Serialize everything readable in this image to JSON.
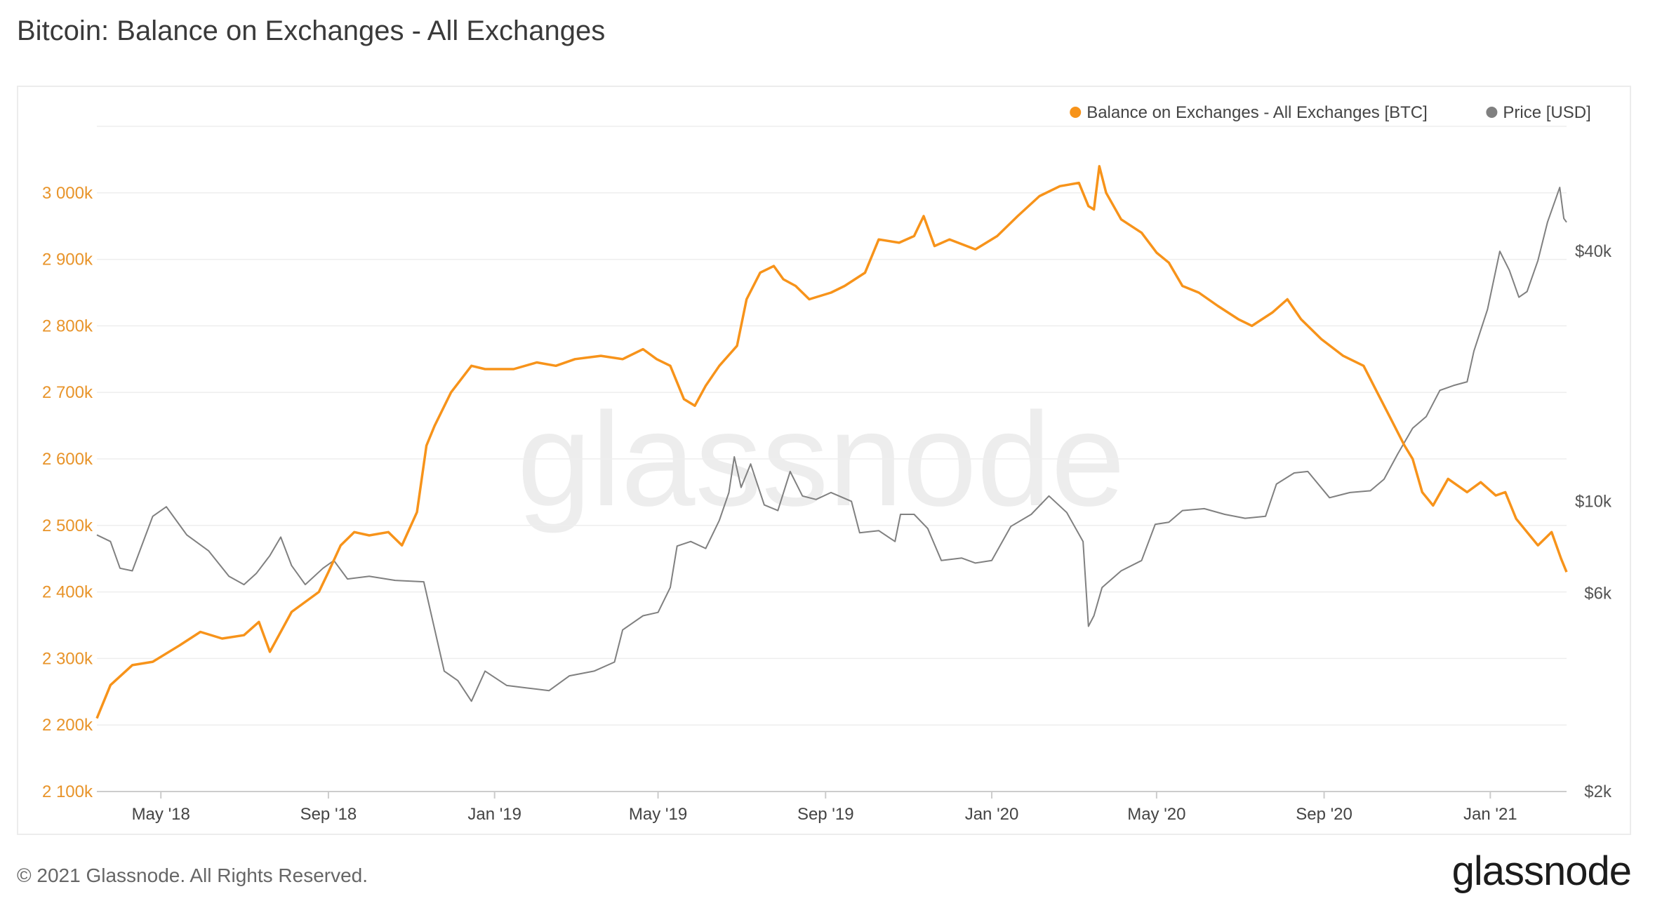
{
  "page": {
    "title": "Bitcoin: Balance on Exchanges - All Exchanges",
    "copyright": "© 2021 Glassnode. All Rights Reserved.",
    "brand": "glassnode",
    "watermark": "glassnode"
  },
  "chart_data": {
    "type": "line",
    "legend": [
      {
        "name": "Balance on Exchanges - All Exchanges [BTC]",
        "color": "#f7931a"
      },
      {
        "name": "Price [USD]",
        "color": "#808080"
      }
    ],
    "legend_position": "top-right",
    "x_range": [
      "2018-03-15",
      "2021-02-26"
    ],
    "x_ticks": [
      {
        "date": "2018-05-01",
        "label": "May '18"
      },
      {
        "date": "2018-09-01",
        "label": "Sep '18"
      },
      {
        "date": "2019-01-01",
        "label": "Jan '19"
      },
      {
        "date": "2019-05-01",
        "label": "May '19"
      },
      {
        "date": "2019-09-01",
        "label": "Sep '19"
      },
      {
        "date": "2020-01-01",
        "label": "Jan '20"
      },
      {
        "date": "2020-05-01",
        "label": "May '20"
      },
      {
        "date": "2020-09-01",
        "label": "Sep '20"
      },
      {
        "date": "2021-01-01",
        "label": "Jan '21"
      }
    ],
    "y_left": {
      "color": "#e8942a",
      "ylim": [
        2100000,
        3100000
      ],
      "ticks": [
        {
          "value": 2100000,
          "label": "2 100k"
        },
        {
          "value": 2200000,
          "label": "2 200k"
        },
        {
          "value": 2300000,
          "label": "2 300k"
        },
        {
          "value": 2400000,
          "label": "2 400k"
        },
        {
          "value": 2500000,
          "label": "2 500k"
        },
        {
          "value": 2600000,
          "label": "2 600k"
        },
        {
          "value": 2700000,
          "label": "2 700k"
        },
        {
          "value": 2800000,
          "label": "2 800k"
        },
        {
          "value": 2900000,
          "label": "2 900k"
        },
        {
          "value": 3000000,
          "label": "3 000k"
        }
      ]
    },
    "y_right": {
      "scale": "log",
      "color": "#555555",
      "ylim": [
        2000,
        80000
      ],
      "ticks": [
        {
          "value": 2000,
          "label": "$2k"
        },
        {
          "value": 6000,
          "label": "$6k"
        },
        {
          "value": 10000,
          "label": "$10k"
        },
        {
          "value": 40000,
          "label": "$40k"
        }
      ]
    },
    "grid": true,
    "series": [
      {
        "name": "Balance on Exchanges - All Exchanges [BTC]",
        "axis": "left",
        "color": "#f7931a",
        "points": [
          [
            "2018-03-15",
            2210000
          ],
          [
            "2018-03-25",
            2260000
          ],
          [
            "2018-04-10",
            2290000
          ],
          [
            "2018-04-25",
            2295000
          ],
          [
            "2018-05-15",
            2320000
          ],
          [
            "2018-05-30",
            2340000
          ],
          [
            "2018-06-15",
            2330000
          ],
          [
            "2018-07-01",
            2335000
          ],
          [
            "2018-07-12",
            2355000
          ],
          [
            "2018-07-20",
            2310000
          ],
          [
            "2018-08-05",
            2370000
          ],
          [
            "2018-08-25",
            2400000
          ],
          [
            "2018-09-01",
            2430000
          ],
          [
            "2018-09-10",
            2470000
          ],
          [
            "2018-09-20",
            2490000
          ],
          [
            "2018-10-01",
            2485000
          ],
          [
            "2018-10-15",
            2490000
          ],
          [
            "2018-10-25",
            2470000
          ],
          [
            "2018-11-05",
            2520000
          ],
          [
            "2018-11-12",
            2620000
          ],
          [
            "2018-11-18",
            2650000
          ],
          [
            "2018-11-30",
            2700000
          ],
          [
            "2018-12-15",
            2740000
          ],
          [
            "2018-12-25",
            2735000
          ],
          [
            "2019-01-15",
            2735000
          ],
          [
            "2019-02-01",
            2745000
          ],
          [
            "2019-02-15",
            2740000
          ],
          [
            "2019-03-01",
            2750000
          ],
          [
            "2019-03-20",
            2755000
          ],
          [
            "2019-04-05",
            2750000
          ],
          [
            "2019-04-20",
            2765000
          ],
          [
            "2019-04-30",
            2750000
          ],
          [
            "2019-05-10",
            2740000
          ],
          [
            "2019-05-20",
            2690000
          ],
          [
            "2019-05-28",
            2680000
          ],
          [
            "2019-06-05",
            2710000
          ],
          [
            "2019-06-15",
            2740000
          ],
          [
            "2019-06-28",
            2770000
          ],
          [
            "2019-07-05",
            2840000
          ],
          [
            "2019-07-15",
            2880000
          ],
          [
            "2019-07-25",
            2890000
          ],
          [
            "2019-08-01",
            2870000
          ],
          [
            "2019-08-10",
            2860000
          ],
          [
            "2019-08-20",
            2840000
          ],
          [
            "2019-09-05",
            2850000
          ],
          [
            "2019-09-15",
            2860000
          ],
          [
            "2019-09-30",
            2880000
          ],
          [
            "2019-10-10",
            2930000
          ],
          [
            "2019-10-25",
            2925000
          ],
          [
            "2019-11-05",
            2935000
          ],
          [
            "2019-11-12",
            2965000
          ],
          [
            "2019-11-20",
            2920000
          ],
          [
            "2019-12-01",
            2930000
          ],
          [
            "2019-12-20",
            2915000
          ],
          [
            "2020-01-05",
            2935000
          ],
          [
            "2020-01-20",
            2965000
          ],
          [
            "2020-02-05",
            2995000
          ],
          [
            "2020-02-20",
            3010000
          ],
          [
            "2020-03-05",
            3015000
          ],
          [
            "2020-03-12",
            2980000
          ],
          [
            "2020-03-16",
            2975000
          ],
          [
            "2020-03-20",
            3040000
          ],
          [
            "2020-03-25",
            3000000
          ],
          [
            "2020-04-05",
            2960000
          ],
          [
            "2020-04-20",
            2940000
          ],
          [
            "2020-05-01",
            2910000
          ],
          [
            "2020-05-10",
            2895000
          ],
          [
            "2020-05-20",
            2860000
          ],
          [
            "2020-06-01",
            2850000
          ],
          [
            "2020-06-15",
            2830000
          ],
          [
            "2020-06-30",
            2810000
          ],
          [
            "2020-07-10",
            2800000
          ],
          [
            "2020-07-25",
            2820000
          ],
          [
            "2020-08-05",
            2840000
          ],
          [
            "2020-08-15",
            2810000
          ],
          [
            "2020-08-30",
            2780000
          ],
          [
            "2020-09-15",
            2755000
          ],
          [
            "2020-09-30",
            2740000
          ],
          [
            "2020-10-10",
            2700000
          ],
          [
            "2020-10-20",
            2660000
          ],
          [
            "2020-10-30",
            2620000
          ],
          [
            "2020-11-05",
            2600000
          ],
          [
            "2020-11-12",
            2550000
          ],
          [
            "2020-11-20",
            2530000
          ],
          [
            "2020-12-01",
            2570000
          ],
          [
            "2020-12-15",
            2550000
          ],
          [
            "2020-12-25",
            2565000
          ],
          [
            "2021-01-05",
            2545000
          ],
          [
            "2021-01-12",
            2550000
          ],
          [
            "2021-01-20",
            2510000
          ],
          [
            "2021-01-28",
            2490000
          ],
          [
            "2021-02-05",
            2470000
          ],
          [
            "2021-02-15",
            2490000
          ],
          [
            "2021-02-22",
            2450000
          ],
          [
            "2021-02-26",
            2430000
          ]
        ]
      },
      {
        "name": "Price [USD]",
        "axis": "right",
        "color": "#808080",
        "points": [
          [
            "2018-03-15",
            8300
          ],
          [
            "2018-03-25",
            8000
          ],
          [
            "2018-04-01",
            6900
          ],
          [
            "2018-04-10",
            6800
          ],
          [
            "2018-04-25",
            9200
          ],
          [
            "2018-05-05",
            9700
          ],
          [
            "2018-05-20",
            8300
          ],
          [
            "2018-06-05",
            7600
          ],
          [
            "2018-06-20",
            6600
          ],
          [
            "2018-07-01",
            6300
          ],
          [
            "2018-07-10",
            6700
          ],
          [
            "2018-07-20",
            7400
          ],
          [
            "2018-07-28",
            8200
          ],
          [
            "2018-08-05",
            7000
          ],
          [
            "2018-08-15",
            6300
          ],
          [
            "2018-08-28",
            6900
          ],
          [
            "2018-09-05",
            7200
          ],
          [
            "2018-09-15",
            6500
          ],
          [
            "2018-10-01",
            6600
          ],
          [
            "2018-10-20",
            6450
          ],
          [
            "2018-11-10",
            6400
          ],
          [
            "2018-11-20",
            4600
          ],
          [
            "2018-11-25",
            3900
          ],
          [
            "2018-12-05",
            3700
          ],
          [
            "2018-12-15",
            3300
          ],
          [
            "2018-12-25",
            3900
          ],
          [
            "2019-01-10",
            3600
          ],
          [
            "2019-01-25",
            3550
          ],
          [
            "2019-02-10",
            3500
          ],
          [
            "2019-02-25",
            3800
          ],
          [
            "2019-03-15",
            3900
          ],
          [
            "2019-03-30",
            4100
          ],
          [
            "2019-04-05",
            4900
          ],
          [
            "2019-04-20",
            5300
          ],
          [
            "2019-05-01",
            5400
          ],
          [
            "2019-05-10",
            6200
          ],
          [
            "2019-05-15",
            7800
          ],
          [
            "2019-05-25",
            8000
          ],
          [
            "2019-06-05",
            7700
          ],
          [
            "2019-06-15",
            9000
          ],
          [
            "2019-06-22",
            10500
          ],
          [
            "2019-06-26",
            12800
          ],
          [
            "2019-07-01",
            10800
          ],
          [
            "2019-07-08",
            12300
          ],
          [
            "2019-07-18",
            9800
          ],
          [
            "2019-07-28",
            9500
          ],
          [
            "2019-08-06",
            11800
          ],
          [
            "2019-08-15",
            10300
          ],
          [
            "2019-08-25",
            10100
          ],
          [
            "2019-09-05",
            10500
          ],
          [
            "2019-09-20",
            10000
          ],
          [
            "2019-09-26",
            8400
          ],
          [
            "2019-10-10",
            8500
          ],
          [
            "2019-10-22",
            8000
          ],
          [
            "2019-10-26",
            9300
          ],
          [
            "2019-11-05",
            9300
          ],
          [
            "2019-11-15",
            8600
          ],
          [
            "2019-11-25",
            7200
          ],
          [
            "2019-12-10",
            7300
          ],
          [
            "2019-12-20",
            7100
          ],
          [
            "2020-01-01",
            7200
          ],
          [
            "2020-01-15",
            8700
          ],
          [
            "2020-01-30",
            9300
          ],
          [
            "2020-02-12",
            10300
          ],
          [
            "2020-02-25",
            9400
          ],
          [
            "2020-03-08",
            8000
          ],
          [
            "2020-03-12",
            5000
          ],
          [
            "2020-03-16",
            5300
          ],
          [
            "2020-03-22",
            6200
          ],
          [
            "2020-04-05",
            6800
          ],
          [
            "2020-04-20",
            7200
          ],
          [
            "2020-04-30",
            8800
          ],
          [
            "2020-05-10",
            8900
          ],
          [
            "2020-05-20",
            9500
          ],
          [
            "2020-06-05",
            9600
          ],
          [
            "2020-06-20",
            9300
          ],
          [
            "2020-07-05",
            9100
          ],
          [
            "2020-07-20",
            9200
          ],
          [
            "2020-07-28",
            11000
          ],
          [
            "2020-08-10",
            11700
          ],
          [
            "2020-08-20",
            11800
          ],
          [
            "2020-09-05",
            10200
          ],
          [
            "2020-09-20",
            10500
          ],
          [
            "2020-10-05",
            10600
          ],
          [
            "2020-10-15",
            11300
          ],
          [
            "2020-10-25",
            13000
          ],
          [
            "2020-11-05",
            15000
          ],
          [
            "2020-11-15",
            16000
          ],
          [
            "2020-11-25",
            18500
          ],
          [
            "2020-12-05",
            19000
          ],
          [
            "2020-12-15",
            19400
          ],
          [
            "2020-12-20",
            23000
          ],
          [
            "2020-12-30",
            29000
          ],
          [
            "2021-01-08",
            40000
          ],
          [
            "2021-01-15",
            36000
          ],
          [
            "2021-01-22",
            31000
          ],
          [
            "2021-01-28",
            32000
          ],
          [
            "2021-02-05",
            38000
          ],
          [
            "2021-02-12",
            47000
          ],
          [
            "2021-02-21",
            57000
          ],
          [
            "2021-02-24",
            48000
          ],
          [
            "2021-02-26",
            47000
          ]
        ]
      }
    ]
  }
}
